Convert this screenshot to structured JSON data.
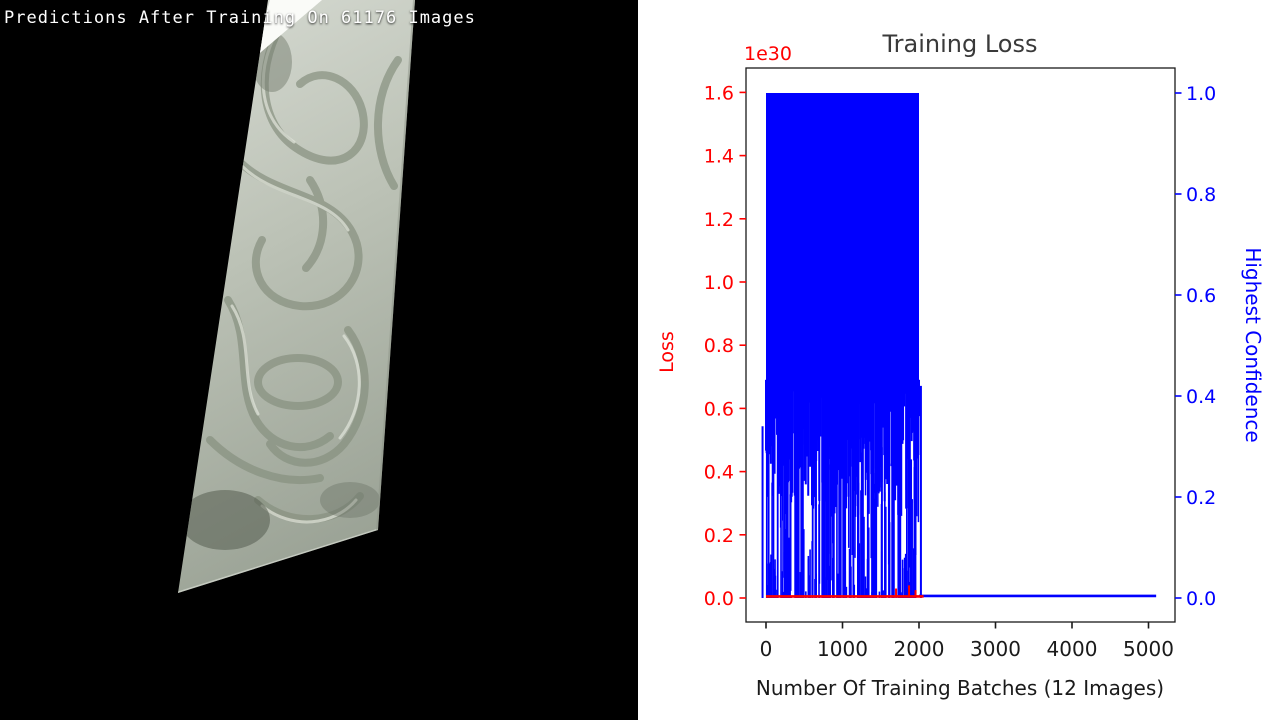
{
  "left_panel": {
    "caption": "Predictions After Training On 61176 Images"
  },
  "chart_data": {
    "type": "line",
    "title": "Training Loss",
    "x_axis": {
      "label": "Number Of Training Batches (12 Images)",
      "ticks": [
        "0",
        "1000",
        "2000",
        "3000",
        "4000",
        "5000"
      ],
      "range": [
        -260,
        5350
      ]
    },
    "left_axis": {
      "label": "Loss",
      "color": "#ff0000",
      "offset_text": "1e30",
      "ticks": [
        "0.0",
        "0.2",
        "0.4",
        "0.6",
        "0.8",
        "1.0",
        "1.2",
        "1.4",
        "1.6"
      ],
      "range": [
        -0.08,
        1.68
      ],
      "units_multiplier": "1e30"
    },
    "right_axis": {
      "label": "Highest Confidence",
      "color": "#0000ff",
      "ticks": [
        "0.0",
        "0.2",
        "0.4",
        "0.6",
        "0.8",
        "1.0"
      ],
      "range": [
        -0.05,
        1.05
      ]
    },
    "legend": "none",
    "grid": false,
    "series": [
      {
        "name": "Loss",
        "axis": "left",
        "color": "#ff0000",
        "summary": "flat near 0 (x1e30) from batch 0 to ~2060, tiny spikes near batches 1700-1960",
        "flat_value": 0.005,
        "end_batch": 2060,
        "spikes": [
          {
            "b": 1700,
            "v": 0.03
          },
          {
            "b": 1870,
            "v": 0.04
          },
          {
            "b": 1955,
            "v": 0.025
          }
        ]
      },
      {
        "name": "Highest Confidence",
        "axis": "right",
        "color": "#0000ff",
        "summary": "oscillates densely between 0 and 1 for batches 0-2000 (solid band near 1.0 down to ~0.43 with spiky columns to 0), then constant 0 until batch ~5100",
        "dense_start": 0,
        "dense_end": 2000,
        "solid_top": 1.0,
        "solid_bottom": 0.43,
        "flat_value": 0.004,
        "flat_end": 5100,
        "extra_spikes": [
          {
            "b": 2025,
            "c": 0.42
          },
          {
            "b": -45,
            "c": 0.34
          }
        ]
      }
    ],
    "noise": {
      "seed": 11,
      "ragged_step": 8,
      "ragged_depth": 0.27,
      "bottom_spike_count": 150,
      "bottom_spike_max": 0.5,
      "full_column_count": 28,
      "mid_spike_count": 60
    }
  }
}
